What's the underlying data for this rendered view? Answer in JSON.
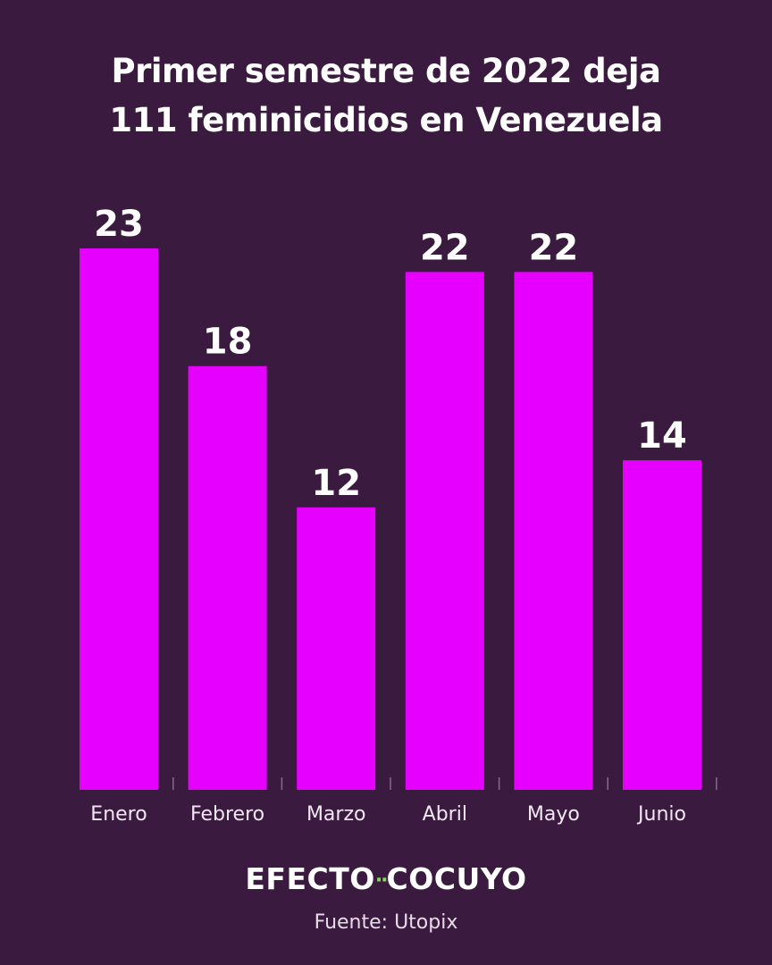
{
  "title_lines": [
    "Primer semestre de 2022 deja",
    "111 feminicidios en Venezuela"
  ],
  "brand": {
    "left": "EFECTO",
    "separator": "··",
    "right": "COCUYO"
  },
  "source": "Fuente: Utopix",
  "colors": {
    "background": "#3b1a3f",
    "bar": "#e500ff",
    "text": "#ffffff",
    "brand_dot": "#7ed957"
  },
  "chart_data": {
    "type": "bar",
    "title": "Primer semestre de 2022 deja 111 feminicidios en Venezuela",
    "categories": [
      "Enero",
      "Febrero",
      "Marzo",
      "Abril",
      "Mayo",
      "Junio"
    ],
    "values": [
      23,
      18,
      12,
      22,
      22,
      14
    ],
    "data_labels": [
      "23",
      "18",
      "12",
      "22",
      "22",
      "14"
    ],
    "xlabel": "",
    "ylabel": "",
    "ylim": [
      0,
      23
    ],
    "grid": false,
    "legend": "none"
  }
}
